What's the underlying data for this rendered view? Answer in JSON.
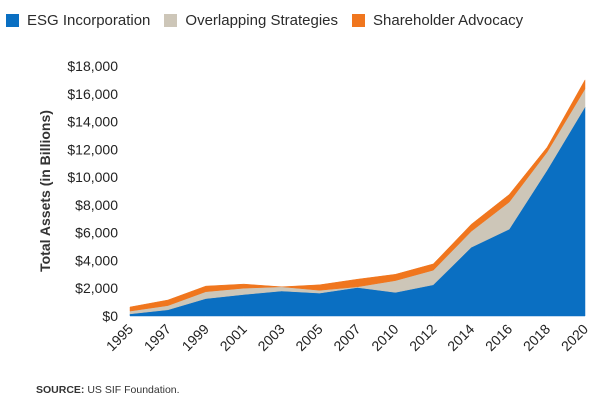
{
  "chart_data": {
    "type": "area",
    "stacked": true,
    "title": "",
    "xlabel": "",
    "ylabel": "Total Assets (in Billions)",
    "x": [
      "1995",
      "1997",
      "1999",
      "2001",
      "2003",
      "2005",
      "2007",
      "2010",
      "2012",
      "2014",
      "2016",
      "2018",
      "2020"
    ],
    "ylim": [
      0,
      18000
    ],
    "yticks": [
      "$0",
      "$2,000",
      "$4,000",
      "$6,000",
      "$8,000",
      "$10,000",
      "$12,000",
      "$14,000",
      "$16,000",
      "$18,000"
    ],
    "ytick_values": [
      0,
      2000,
      4000,
      6000,
      8000,
      10000,
      12000,
      14000,
      16000,
      18000
    ],
    "series": [
      {
        "name": "ESG Incorporation",
        "color": "#0a6fc2",
        "values": [
          150,
          450,
          1250,
          1550,
          1800,
          1650,
          2050,
          1700,
          2250,
          4950,
          6250,
          10500,
          15050
        ]
      },
      {
        "name": "Overlapping Strategies",
        "color": "#cdc6b8",
        "values": [
          200,
          300,
          500,
          450,
          300,
          200,
          50,
          850,
          1050,
          1150,
          1950,
          1300,
          1300
        ]
      },
      {
        "name": "Shareholder Advocacy",
        "color": "#f0761e",
        "values": [
          300,
          400,
          400,
          300,
          0,
          400,
          550,
          450,
          450,
          500,
          550,
          350,
          650
        ]
      }
    ],
    "legend_position": "top-left",
    "grid": false
  },
  "source": {
    "label": "SOURCE:",
    "text": "US SIF Foundation."
  }
}
